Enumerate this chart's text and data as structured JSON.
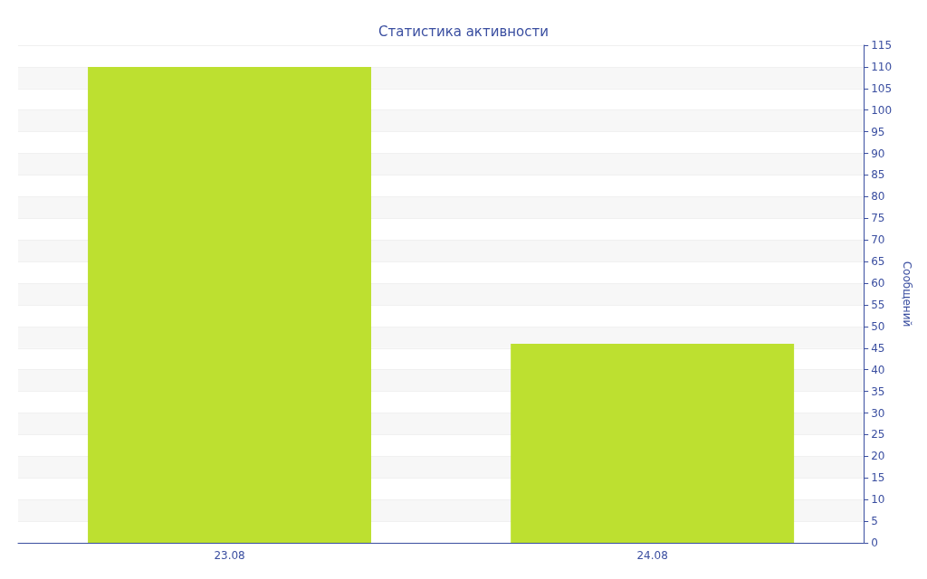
{
  "chart_data": {
    "type": "bar",
    "title": "Статистика активности",
    "ylabel": "Сообщений",
    "categories": [
      "23.08",
      "24.08"
    ],
    "series": [
      {
        "color": "#bde030",
        "values": [
          110,
          46
        ]
      }
    ],
    "ylim": [
      0,
      115
    ],
    "yticks": [
      0,
      5,
      10,
      15,
      20,
      25,
      30,
      35,
      40,
      45,
      50,
      55,
      60,
      65,
      70,
      75,
      80,
      85,
      90,
      95,
      100,
      105,
      110,
      115
    ],
    "grid": "y"
  }
}
